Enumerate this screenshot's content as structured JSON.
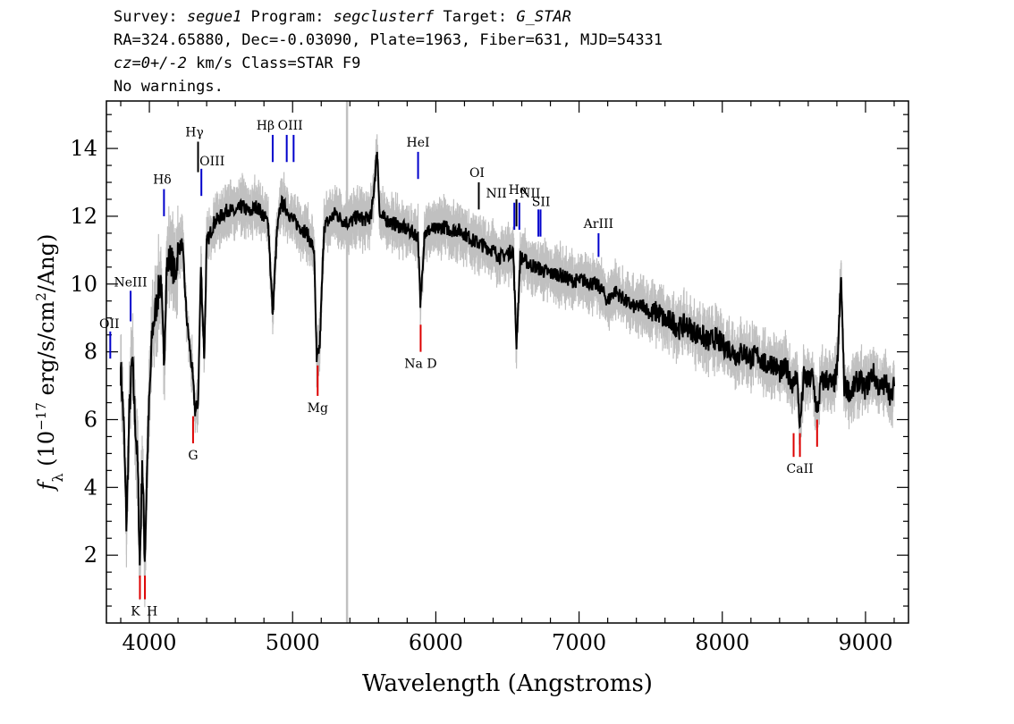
{
  "header": {
    "line1": {
      "k1": "Survey: ",
      "survey": "segue1",
      "k2": " Program: ",
      "program": "segclusterf",
      "k3": " Target: ",
      "target": "G_STAR"
    },
    "line2": "RA=324.65880, Dec=-0.03090, Plate=1963, Fiber=631, MJD=54331",
    "line3": {
      "cz": "cz=0+/-2",
      "rest": " km/s Class=STAR F9"
    },
    "line4": "No warnings."
  },
  "chart_data": {
    "type": "line",
    "xlabel": "Wavelength (Angstroms)",
    "ylabel": "f_λ (10^-17 erg/s/cm^2/Ang)",
    "xlim": [
      3700,
      9300
    ],
    "ylim": [
      0,
      15.4
    ],
    "x_ticks": [
      4000,
      5000,
      6000,
      7000,
      8000,
      9000
    ],
    "y_ticks": [
      2,
      4,
      6,
      8,
      10,
      12,
      14
    ],
    "series": [
      {
        "values": [
          [
            3800,
            7.5
          ],
          [
            3820,
            6.0
          ],
          [
            3840,
            2.8
          ],
          [
            3860,
            6.2
          ],
          [
            3880,
            7.8
          ],
          [
            3900,
            6.0
          ],
          [
            3920,
            4.5
          ],
          [
            3933,
            1.7
          ],
          [
            3950,
            4.8
          ],
          [
            3968,
            1.9
          ],
          [
            3990,
            5.5
          ],
          [
            4020,
            8.6
          ],
          [
            4050,
            9.4
          ],
          [
            4080,
            10.2
          ],
          [
            4101,
            7.6
          ],
          [
            4120,
            10.5
          ],
          [
            4150,
            10.8
          ],
          [
            4180,
            10.2
          ],
          [
            4200,
            11.0
          ],
          [
            4230,
            11.2
          ],
          [
            4260,
            9.0
          ],
          [
            4300,
            7.4
          ],
          [
            4320,
            6.2
          ],
          [
            4340,
            6.5
          ],
          [
            4360,
            10.5
          ],
          [
            4383,
            7.8
          ],
          [
            4400,
            11.2
          ],
          [
            4450,
            11.8
          ],
          [
            4500,
            12.0
          ],
          [
            4550,
            12.2
          ],
          [
            4600,
            12.1
          ],
          [
            4650,
            12.3
          ],
          [
            4700,
            12.1
          ],
          [
            4750,
            12.3
          ],
          [
            4800,
            12.0
          ],
          [
            4830,
            11.8
          ],
          [
            4861,
            9.1
          ],
          [
            4890,
            11.5
          ],
          [
            4920,
            12.4
          ],
          [
            4960,
            12.2
          ],
          [
            5000,
            11.9
          ],
          [
            5050,
            11.7
          ],
          [
            5100,
            11.5
          ],
          [
            5150,
            11.0
          ],
          [
            5168,
            7.7
          ],
          [
            5190,
            8.2
          ],
          [
            5220,
            11.7
          ],
          [
            5260,
            11.9
          ],
          [
            5300,
            12.1
          ],
          [
            5340,
            11.9
          ],
          [
            5400,
            11.8
          ],
          [
            5450,
            12.0
          ],
          [
            5500,
            11.9
          ],
          [
            5550,
            12.0
          ],
          [
            5590,
            13.9
          ],
          [
            5610,
            12.0
          ],
          [
            5650,
            11.9
          ],
          [
            5700,
            11.8
          ],
          [
            5750,
            11.7
          ],
          [
            5800,
            11.6
          ],
          [
            5850,
            11.5
          ],
          [
            5876,
            11.4
          ],
          [
            5892,
            9.3
          ],
          [
            5920,
            11.5
          ],
          [
            5960,
            11.6
          ],
          [
            6000,
            11.6
          ],
          [
            6050,
            11.7
          ],
          [
            6100,
            11.6
          ],
          [
            6150,
            11.6
          ],
          [
            6200,
            11.5
          ],
          [
            6250,
            11.3
          ],
          [
            6300,
            11.2
          ],
          [
            6350,
            11.1
          ],
          [
            6400,
            11.0
          ],
          [
            6450,
            10.8
          ],
          [
            6500,
            10.9
          ],
          [
            6540,
            11.0
          ],
          [
            6563,
            8.2
          ],
          [
            6590,
            10.8
          ],
          [
            6650,
            10.6
          ],
          [
            6700,
            10.5
          ],
          [
            6750,
            10.4
          ],
          [
            6800,
            10.3
          ],
          [
            6850,
            10.3
          ],
          [
            6900,
            10.2
          ],
          [
            6950,
            10.1
          ],
          [
            7000,
            10.1
          ],
          [
            7050,
            10.1
          ],
          [
            7100,
            10.0
          ],
          [
            7150,
            9.9
          ],
          [
            7200,
            9.5
          ],
          [
            7250,
            9.8
          ],
          [
            7300,
            9.6
          ],
          [
            7350,
            9.4
          ],
          [
            7400,
            9.3
          ],
          [
            7450,
            9.4
          ],
          [
            7500,
            9.1
          ],
          [
            7550,
            9.2
          ],
          [
            7600,
            8.9
          ],
          [
            7650,
            8.9
          ],
          [
            7700,
            8.7
          ],
          [
            7750,
            8.8
          ],
          [
            7800,
            8.6
          ],
          [
            7850,
            8.5
          ],
          [
            7900,
            8.3
          ],
          [
            7950,
            8.4
          ],
          [
            8000,
            8.2
          ],
          [
            8050,
            8.1
          ],
          [
            8100,
            7.9
          ],
          [
            8150,
            8.0
          ],
          [
            8200,
            7.8
          ],
          [
            8250,
            7.9
          ],
          [
            8300,
            7.6
          ],
          [
            8350,
            7.7
          ],
          [
            8400,
            7.4
          ],
          [
            8450,
            7.5
          ],
          [
            8498,
            7.0
          ],
          [
            8520,
            7.4
          ],
          [
            8542,
            5.8
          ],
          [
            8570,
            7.3
          ],
          [
            8600,
            7.1
          ],
          [
            8630,
            7.3
          ],
          [
            8662,
            6.2
          ],
          [
            8690,
            7.1
          ],
          [
            8730,
            7.2
          ],
          [
            8770,
            7.0
          ],
          [
            8800,
            7.3
          ],
          [
            8830,
            10.2
          ],
          [
            8850,
            7.0
          ],
          [
            8900,
            6.8
          ],
          [
            8950,
            7.2
          ],
          [
            9000,
            6.9
          ],
          [
            9050,
            7.4
          ],
          [
            9100,
            6.9
          ],
          [
            9150,
            7.1
          ],
          [
            9180,
            6.6
          ],
          [
            9200,
            7.0
          ]
        ]
      }
    ],
    "annotations": {
      "emission_lines": [
        {
          "label": "OII",
          "x": 3727,
          "y1": 7.8,
          "y2": 8.6
        },
        {
          "label": "NeIII",
          "x": 3869,
          "y1": 8.9,
          "y2": 9.8
        },
        {
          "label": "Hδ",
          "x": 4102,
          "y1": 12.0,
          "y2": 12.8
        },
        {
          "label": "Hγ",
          "x": 4340,
          "y1": 13.3,
          "y2": 14.2
        },
        {
          "label": "OIII",
          "x": 4363,
          "y1": 12.6,
          "y2": 13.4
        },
        {
          "label": "Hβ",
          "x": 4861,
          "y1": 13.6,
          "y2": 14.4
        },
        {
          "label": "OIII",
          "x": 4959,
          "y1": 13.6,
          "y2": 14.4
        },
        {
          "label": "",
          "x": 5007,
          "y1": 13.6,
          "y2": 14.4
        },
        {
          "label": "HeI",
          "x": 5876,
          "y1": 13.1,
          "y2": 13.9
        },
        {
          "label": "OI",
          "x": 6300,
          "y1": 12.2,
          "y2": 13.0
        },
        {
          "label": "NII",
          "x": 6548,
          "y1": 11.6,
          "y2": 12.4
        },
        {
          "label": "Hα",
          "x": 6563,
          "y1": 11.7,
          "y2": 12.5
        },
        {
          "label": "NII",
          "x": 6583,
          "y1": 11.6,
          "y2": 12.4
        },
        {
          "label": "SII",
          "x": 6716,
          "y1": 11.4,
          "y2": 12.2
        },
        {
          "label": "",
          "x": 6731,
          "y1": 11.4,
          "y2": 12.2
        },
        {
          "label": "ArIII",
          "x": 7136,
          "y1": 10.8,
          "y2": 11.5
        }
      ],
      "absorption_lines": [
        {
          "label": "K",
          "x": 3934,
          "y1": 0.7,
          "y2": 1.4
        },
        {
          "label": "H",
          "x": 3969,
          "y1": 0.7,
          "y2": 1.4
        },
        {
          "label": "G",
          "x": 4305,
          "y1": 5.3,
          "y2": 6.1
        },
        {
          "label": "Mg",
          "x": 5175,
          "y1": 6.7,
          "y2": 7.6
        },
        {
          "label": "Na D",
          "x": 5894,
          "y1": 8.0,
          "y2": 8.8
        },
        {
          "label": "",
          "x": 8498,
          "y1": 4.9,
          "y2": 5.6
        },
        {
          "label": "CaII",
          "x": 8542,
          "y1": 4.9,
          "y2": 5.6
        },
        {
          "label": "",
          "x": 8662,
          "y1": 5.2,
          "y2": 6.0
        }
      ],
      "vertical_marker_x": 5380
    },
    "colors": {
      "flux": "#000000",
      "noise": "#c0c0c0",
      "emission": "#0000cc",
      "absorption": "#dd0000",
      "plain": "#000000"
    },
    "grid": false
  }
}
